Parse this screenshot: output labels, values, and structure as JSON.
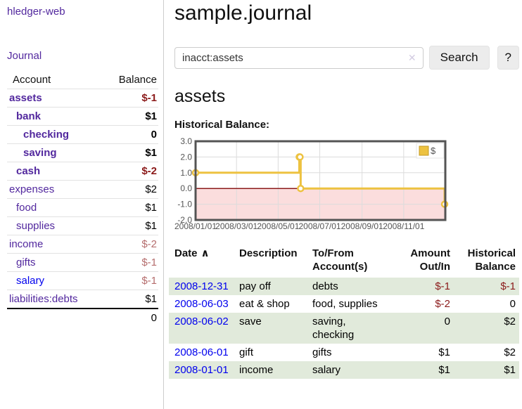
{
  "sidebar": {
    "app_link": "hledger-web",
    "journal_link": "Journal",
    "accounts": {
      "header_account": "Account",
      "header_balance": "Balance",
      "rows": [
        {
          "name": "assets",
          "level": 1,
          "bold": true,
          "balance": "$-1",
          "balance_tone": "negative-dark",
          "link_tone": "purple"
        },
        {
          "name": "bank",
          "level": 2,
          "bold": true,
          "balance": "$1",
          "balance_tone": "normal",
          "link_tone": "purple"
        },
        {
          "name": "checking",
          "level": 3,
          "bold": true,
          "balance": "0",
          "balance_tone": "normal",
          "link_tone": "purple"
        },
        {
          "name": "saving",
          "level": 3,
          "bold": true,
          "balance": "$1",
          "balance_tone": "normal",
          "link_tone": "purple"
        },
        {
          "name": "cash",
          "level": 2,
          "bold": true,
          "balance": "$-2",
          "balance_tone": "negative-dark",
          "link_tone": "purple"
        },
        {
          "name": "expenses",
          "level": 1,
          "bold": false,
          "balance": "$2",
          "balance_tone": "normal",
          "link_tone": "purple"
        },
        {
          "name": "food",
          "level": 2,
          "bold": false,
          "balance": "$1",
          "balance_tone": "normal",
          "link_tone": "purple"
        },
        {
          "name": "supplies",
          "level": 2,
          "bold": false,
          "balance": "$1",
          "balance_tone": "normal",
          "link_tone": "purple"
        },
        {
          "name": "income",
          "level": 1,
          "bold": false,
          "balance": "$-2",
          "balance_tone": "negative-light",
          "link_tone": "purple"
        },
        {
          "name": "gifts",
          "level": 2,
          "bold": false,
          "balance": "$-1",
          "balance_tone": "negative-light",
          "link_tone": "purple"
        },
        {
          "name": "salary",
          "level": 2,
          "bold": false,
          "balance": "$-1",
          "balance_tone": "negative-light",
          "link_tone": "blue"
        },
        {
          "name": "liabilities:debts",
          "level": 1,
          "bold": false,
          "balance": "$1",
          "balance_tone": "normal",
          "link_tone": "purple"
        }
      ],
      "total": "0"
    }
  },
  "main": {
    "title": "sample.journal",
    "search": {
      "value": "inacct:assets",
      "clear_icon": "✕",
      "button_label": "Search",
      "help_label": "?"
    },
    "account_heading": "assets",
    "chart_heading": "Historical Balance:",
    "register": {
      "columns": [
        {
          "label": "Date",
          "sort_indicator": "∧",
          "align": "left"
        },
        {
          "label": "Description",
          "align": "left"
        },
        {
          "label": "To/From\nAccount(s)",
          "align": "left"
        },
        {
          "label": "Amount\nOut/In",
          "align": "right"
        },
        {
          "label": "Historical\nBalance",
          "align": "right"
        }
      ],
      "rows": [
        {
          "date": "2008-12-31",
          "description": "pay off",
          "accounts": "debts",
          "amount": "$-1",
          "amount_negative": true,
          "balance": "$-1",
          "balance_negative": true,
          "shaded": true
        },
        {
          "date": "2008-06-03",
          "description": "eat & shop",
          "accounts": "food, supplies",
          "amount": "$-2",
          "amount_negative": true,
          "balance": "0",
          "balance_negative": false,
          "shaded": false
        },
        {
          "date": "2008-06-02",
          "description": "save",
          "accounts": "saving, checking",
          "amount": "0",
          "amount_negative": false,
          "balance": "$2",
          "balance_negative": false,
          "shaded": true
        },
        {
          "date": "2008-06-01",
          "description": "gift",
          "accounts": "gifts",
          "amount": "$1",
          "amount_negative": false,
          "balance": "$2",
          "balance_negative": false,
          "shaded": false
        },
        {
          "date": "2008-01-01",
          "description": "income",
          "accounts": "salary",
          "amount": "$1",
          "amount_negative": false,
          "balance": "$1",
          "balance_negative": false,
          "shaded": true
        }
      ]
    }
  },
  "chart_data": {
    "type": "line",
    "step": true,
    "title": "Historical Balance:",
    "series": [
      {
        "name": "$",
        "color": "#edc240",
        "points": [
          [
            "2008/01/01",
            1
          ],
          [
            "2008/06/01",
            2
          ],
          [
            "2008/06/02",
            2
          ],
          [
            "2008/06/03",
            0
          ],
          [
            "2008/12/31",
            -1
          ]
        ]
      }
    ],
    "x_range": [
      "2008/01/01",
      "2009/01/01"
    ],
    "x_ticks": [
      "2008/01/01",
      "2008/03/01",
      "2008/05/01",
      "2008/07/01",
      "2008/09/01",
      "2008/11/01"
    ],
    "y_range": [
      -2,
      3
    ],
    "y_ticks": [
      3.0,
      2.0,
      1.0,
      0.0,
      -1.0,
      -2.0
    ],
    "legend_position": "top-right",
    "grid": true,
    "negative_region_color": "#fbdddd",
    "zero_line_color": "#8b1a1a",
    "frame_color": "#545454",
    "grid_color": "#dcdcdc",
    "tick_label_color": "#545454"
  },
  "colors": {
    "link_purple": "#52289e",
    "link_blue": "#0000ee",
    "negative_dark": "#8b1a1a",
    "negative_light": "#b56d6d",
    "row_green": "#e1eadb",
    "button_bg": "#ececec"
  }
}
